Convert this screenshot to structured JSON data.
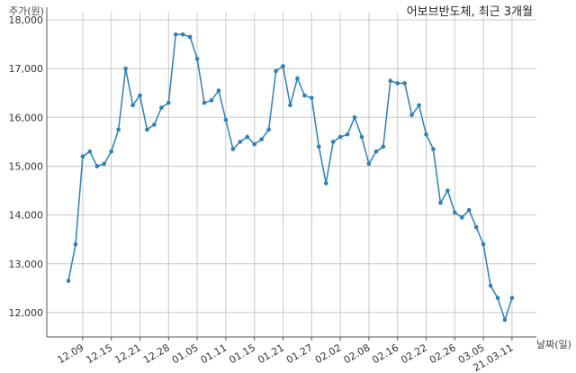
{
  "chart_data": {
    "type": "line",
    "title": "어보브반도체, 최근 3개월",
    "xlabel": "날짜(일)",
    "ylabel": "주가(원)",
    "ylim": [
      11500,
      18000
    ],
    "yticks": [
      12000,
      13000,
      14000,
      15000,
      16000,
      17000,
      18000
    ],
    "ytick_labels": [
      "12,000",
      "13,000",
      "14,000",
      "15,000",
      "16,000",
      "17,000",
      "18,000"
    ],
    "xticks": [
      {
        "label": "12.09",
        "index": 2
      },
      {
        "label": "12.15",
        "index": 6
      },
      {
        "label": "12.21",
        "index": 10
      },
      {
        "label": "12.28",
        "index": 14
      },
      {
        "label": "01.05",
        "index": 18
      },
      {
        "label": "01.11",
        "index": 22
      },
      {
        "label": "01.15",
        "index": 26
      },
      {
        "label": "01.21",
        "index": 30
      },
      {
        "label": "01.27",
        "index": 34
      },
      {
        "label": "02.02",
        "index": 38
      },
      {
        "label": "02.08",
        "index": 42
      },
      {
        "label": "02.16",
        "index": 46
      },
      {
        "label": "02.22",
        "index": 50
      },
      {
        "label": "02.26",
        "index": 54
      },
      {
        "label": "03.05",
        "index": 58
      },
      {
        "label": "21.03.11",
        "index": 62
      }
    ],
    "grid": true,
    "line_color": "#2e7fb8",
    "series": [
      {
        "values": [
          12650,
          13400,
          15200,
          15300,
          15000,
          15050,
          15300,
          15750,
          17000,
          16250,
          16450,
          15750,
          15850,
          16200,
          16300,
          17700,
          17700,
          17650,
          17200,
          16300,
          16350,
          16550,
          15950,
          15350,
          15500,
          15600,
          15450,
          15550,
          15750,
          16950,
          17050,
          16250,
          16800,
          16450,
          16400,
          15400,
          14650,
          15500,
          15600,
          15650,
          16000,
          15600,
          15050,
          15300,
          15400,
          16750,
          16700,
          16700,
          16050,
          16250,
          15650,
          15350,
          14250,
          14500,
          14050,
          13950,
          14100,
          13750,
          13400,
          12550,
          12300,
          11850,
          12300
        ]
      }
    ]
  }
}
